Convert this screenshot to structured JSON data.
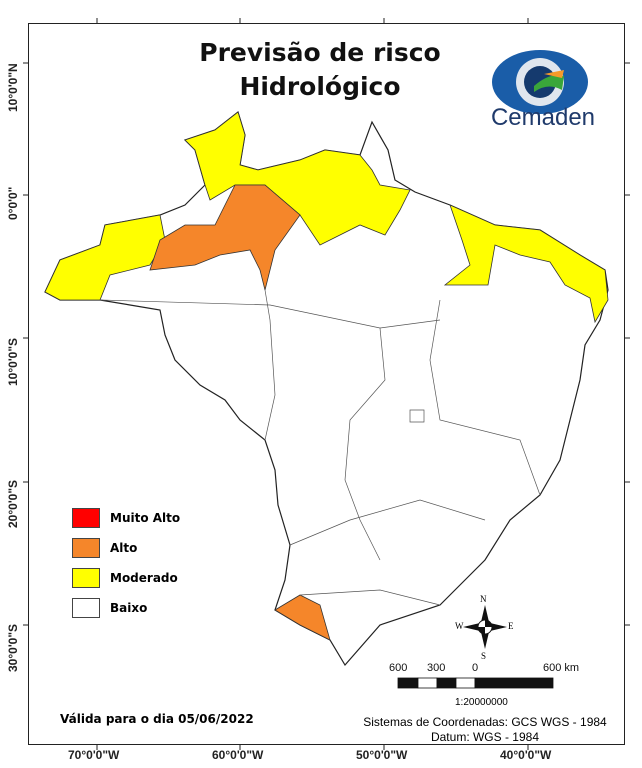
{
  "title_line1": "Previsão de risco",
  "title_line2": "Hidrológico",
  "logo": {
    "text": "Cemaden",
    "icon": "cemaden-eye-logo"
  },
  "latitude_labels": [
    "10°0'0\"N",
    "0°0'0\"",
    "10°0'0\"S",
    "20°0'0\"S",
    "30°0'0\"S"
  ],
  "longitude_labels": [
    "70°0'0\"W",
    "60°0'0\"W",
    "50°0'0\"W",
    "40°0'0\"W"
  ],
  "legend": [
    {
      "label": "Muito Alto",
      "color": "#ff0000"
    },
    {
      "label": "Alto",
      "color": "#f5862a"
    },
    {
      "label": "Moderado",
      "color": "#ffff00"
    },
    {
      "label": "Baixo",
      "color": "#ffffff"
    }
  ],
  "compass": {
    "n": "N",
    "s": "S",
    "e": "E",
    "w": "W"
  },
  "scale_bar": {
    "labels": [
      "600",
      "300",
      "0",
      "600 km"
    ],
    "ratio": "1:20000000"
  },
  "valid_date": "Válida para o dia 05/06/2022",
  "coordinate_system": "Sistemas de Coordenadas: GCS WGS - 1984",
  "datum": "Datum: WGS - 1984"
}
